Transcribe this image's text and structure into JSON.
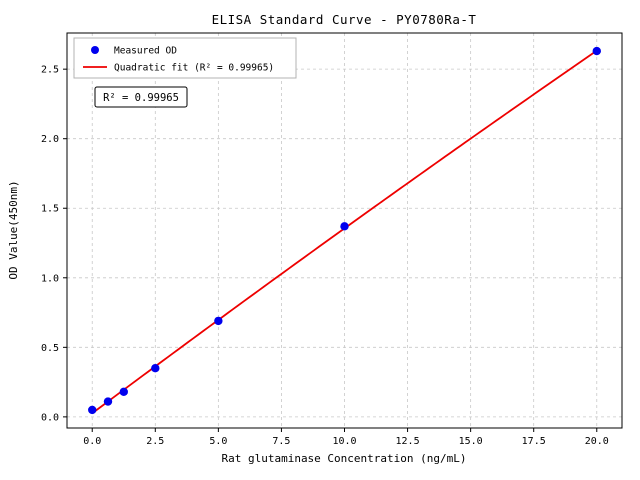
{
  "chart_data": {
    "type": "scatter",
    "title": "ELISA Standard Curve - PY0780Ra-T",
    "xlabel": "Rat glutaminase Concentration (ng/mL)",
    "ylabel": "OD Value(450nm)",
    "series": [
      {
        "name": "Measured OD",
        "kind": "scatter",
        "x": [
          0,
          0.625,
          1.25,
          2.5,
          5,
          10,
          20
        ],
        "y": [
          0.05,
          0.11,
          0.18,
          0.35,
          0.69,
          1.37,
          2.63
        ],
        "color": "#0000ee"
      },
      {
        "name": "Quadratic fit (R² = 0.99965)",
        "kind": "quadratic-fit-line",
        "color": "#ee0000"
      }
    ],
    "legend": [
      "Measured OD",
      "Quadratic fit (R² = 0.99965)"
    ],
    "legend_position": "upper left",
    "annotation": "R² = 0.99965",
    "r_squared": "0.99965",
    "xlim": [
      -1,
      21
    ],
    "ylim": [
      -0.08,
      2.76
    ],
    "x_ticks": [
      0,
      2.5,
      5,
      7.5,
      10,
      12.5,
      15,
      17.5,
      20
    ],
    "x_tick_labels": [
      "0.0",
      "2.5",
      "5.0",
      "7.5",
      "10.0",
      "12.5",
      "15.0",
      "17.5",
      "20.0"
    ],
    "y_ticks": [
      0,
      0.5,
      1,
      1.5,
      2,
      2.5
    ],
    "y_tick_labels": [
      "0.0",
      "0.5",
      "1.0",
      "1.5",
      "2.0",
      "2.5"
    ],
    "grid": true,
    "colors": {
      "point": "#0000ee",
      "fit_line": "#ee0000",
      "grid": "#c8c8c8",
      "background": "#ffffff"
    }
  }
}
